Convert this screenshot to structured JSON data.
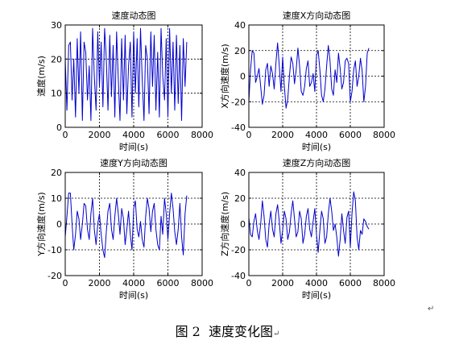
{
  "figure": {
    "caption_number": "图 2",
    "caption_text": "速度变化图",
    "return_mark": "↵"
  },
  "colors": {
    "line": "#0000cc",
    "axis": "#000000",
    "grid": "#000000"
  },
  "chart_data": [
    {
      "type": "line",
      "title": "速度动态图",
      "xlabel": "时间(s)",
      "ylabel": "速度(m/s)",
      "xlim": [
        0,
        8000
      ],
      "ylim": [
        0,
        30
      ],
      "xticks": [
        "0",
        "2000",
        "4000",
        "6000",
        "8000"
      ],
      "yticks": [
        "0",
        "10",
        "20",
        "30"
      ],
      "xtick_values": [
        0,
        2000,
        4000,
        6000,
        8000
      ],
      "ytick_values": [
        0,
        10,
        20,
        30
      ],
      "grid": true,
      "series": [
        {
          "x": [
            0,
            100,
            200,
            300,
            400,
            500,
            600,
            700,
            800,
            900,
            1000,
            1100,
            1200,
            1300,
            1400,
            1500,
            1600,
            1700,
            1800,
            1900,
            2000,
            2100,
            2200,
            2300,
            2400,
            2500,
            2600,
            2700,
            2800,
            2900,
            3000,
            3100,
            3200,
            3300,
            3400,
            3500,
            3600,
            3700,
            3800,
            3900,
            4000,
            4100,
            4200,
            4300,
            4400,
            4500,
            4600,
            4700,
            4800,
            4900,
            5000,
            5100,
            5200,
            5300,
            5400,
            5500,
            5600,
            5700,
            5800,
            5900,
            6000,
            6100,
            6200,
            6300,
            6400,
            6500,
            6600,
            6700,
            6800,
            6900,
            7000,
            7100
          ],
          "y": [
            20,
            5,
            24,
            25,
            8,
            20,
            3,
            26,
            10,
            28,
            2,
            25,
            22,
            8,
            18,
            2,
            29,
            15,
            5,
            28,
            12,
            25,
            6,
            29,
            20,
            5,
            27,
            9,
            24,
            3,
            28,
            14,
            2,
            26,
            8,
            27,
            4,
            18,
            25,
            3,
            28,
            10,
            26,
            6,
            29,
            14,
            2,
            24,
            20,
            4,
            28,
            12,
            27,
            5,
            22,
            3,
            29,
            15,
            8,
            26,
            3,
            29,
            10,
            25,
            5,
            27,
            7,
            24,
            2,
            26,
            12,
            25
          ]
        }
      ]
    },
    {
      "type": "line",
      "title": "速度X方向动态图",
      "xlabel": "时间(s)",
      "ylabel": "X方向速度(m/s)",
      "xlim": [
        0,
        8000
      ],
      "ylim": [
        -40,
        40
      ],
      "xticks": [
        "0",
        "2000",
        "4000",
        "6000",
        "8000"
      ],
      "yticks": [
        "-40",
        "-20",
        "0",
        "20",
        "40"
      ],
      "xtick_values": [
        0,
        2000,
        4000,
        6000,
        8000
      ],
      "ytick_values": [
        -40,
        -20,
        0,
        20,
        40
      ],
      "grid": true,
      "series": [
        {
          "x": [
            0,
            100,
            200,
            300,
            400,
            500,
            600,
            700,
            800,
            900,
            1000,
            1100,
            1200,
            1300,
            1400,
            1500,
            1600,
            1700,
            1800,
            1900,
            2000,
            2100,
            2200,
            2300,
            2400,
            2500,
            2600,
            2700,
            2800,
            2900,
            3000,
            3100,
            3200,
            3300,
            3400,
            3500,
            3600,
            3700,
            3800,
            3900,
            4000,
            4100,
            4200,
            4300,
            4400,
            4500,
            4600,
            4700,
            4800,
            4900,
            5000,
            5100,
            5200,
            5300,
            5400,
            5500,
            5600,
            5700,
            5800,
            5900,
            6000,
            6100,
            6200,
            6300,
            6400,
            6500,
            6600,
            6700,
            6800,
            6900,
            7000,
            7100
          ],
          "y": [
            -20,
            5,
            20,
            18,
            -5,
            0,
            6,
            -8,
            -22,
            -15,
            5,
            10,
            -8,
            8,
            2,
            -10,
            10,
            26,
            8,
            -12,
            15,
            -8,
            -25,
            -18,
            0,
            15,
            10,
            -6,
            5,
            22,
            8,
            -12,
            -15,
            -8,
            6,
            12,
            -8,
            -5,
            2,
            -12,
            16,
            20,
            5,
            -15,
            -20,
            -10,
            8,
            24,
            12,
            -10,
            -15,
            5,
            -5,
            18,
            6,
            -10,
            -5,
            12,
            14,
            10,
            -20,
            -12,
            5,
            12,
            -8,
            0,
            14,
            4,
            -20,
            -8,
            18,
            22
          ]
        }
      ]
    },
    {
      "type": "line",
      "title": "速度Y方向动态图",
      "xlabel": "时间(s)",
      "ylabel": "Y方向速度(m/s)",
      "xlim": [
        0,
        8000
      ],
      "ylim": [
        -20,
        20
      ],
      "xticks": [
        "0",
        "2000",
        "4000",
        "6000",
        "8000"
      ],
      "yticks": [
        "-20",
        "-10",
        "0",
        "10",
        "20"
      ],
      "xtick_values": [
        0,
        2000,
        4000,
        6000,
        8000
      ],
      "ytick_values": [
        -20,
        -10,
        0,
        10,
        20
      ],
      "grid": true,
      "series": [
        {
          "x": [
            0,
            100,
            200,
            300,
            400,
            500,
            600,
            700,
            800,
            900,
            1000,
            1100,
            1200,
            1300,
            1400,
            1500,
            1600,
            1700,
            1800,
            1900,
            2000,
            2100,
            2200,
            2300,
            2400,
            2500,
            2600,
            2700,
            2800,
            2900,
            3000,
            3100,
            3200,
            3300,
            3400,
            3500,
            3600,
            3700,
            3800,
            3900,
            4000,
            4100,
            4200,
            4300,
            4400,
            4500,
            4600,
            4700,
            4800,
            4900,
            5000,
            5100,
            5200,
            5300,
            5400,
            5500,
            5600,
            5700,
            5800,
            5900,
            6000,
            6100,
            6200,
            6300,
            6400,
            6500,
            6600,
            6700,
            6800,
            6900,
            7000,
            7100
          ],
          "y": [
            -5,
            3,
            12,
            12,
            0,
            -10,
            -4,
            5,
            2,
            -6,
            0,
            8,
            7,
            -2,
            -6,
            4,
            10,
            -2,
            -8,
            0,
            4,
            -4,
            -10,
            -13,
            -3,
            5,
            8,
            -2,
            -6,
            3,
            10,
            4,
            -4,
            6,
            2,
            -8,
            -2,
            5,
            -4,
            -10,
            6,
            9,
            -2,
            -5,
            1,
            -6,
            -9,
            3,
            10,
            6,
            -3,
            5,
            8,
            -2,
            -8,
            -10,
            3,
            -4,
            10,
            4,
            -6,
            4,
            12,
            6,
            -3,
            -8,
            -2,
            8,
            -5,
            -12,
            4,
            11
          ]
        }
      ]
    },
    {
      "type": "line",
      "title": "速度Z方向动态图",
      "xlabel": "时间(s)",
      "ylabel": "Z方向速度(m/s)",
      "xlim": [
        0,
        8000
      ],
      "ylim": [
        -40,
        40
      ],
      "xticks": [
        "0",
        "2000",
        "4000",
        "6000",
        "8000"
      ],
      "yticks": [
        "-40",
        "-20",
        "0",
        "20",
        "40"
      ],
      "xtick_values": [
        0,
        2000,
        4000,
        6000,
        8000
      ],
      "ytick_values": [
        -40,
        -20,
        0,
        20,
        40
      ],
      "grid": true,
      "series": [
        {
          "x": [
            0,
            100,
            200,
            300,
            400,
            500,
            600,
            700,
            800,
            900,
            1000,
            1100,
            1200,
            1300,
            1400,
            1500,
            1600,
            1700,
            1800,
            1900,
            2000,
            2100,
            2200,
            2300,
            2400,
            2500,
            2600,
            2700,
            2800,
            2900,
            3000,
            3100,
            3200,
            3300,
            3400,
            3500,
            3600,
            3700,
            3800,
            3900,
            4000,
            4100,
            4200,
            4300,
            4400,
            4500,
            4600,
            4700,
            4800,
            4900,
            5000,
            5100,
            5200,
            5300,
            5400,
            5500,
            5600,
            5700,
            5800,
            5900,
            6000,
            6100,
            6200,
            6300,
            6400,
            6500,
            6600,
            6700,
            6800,
            6900,
            7000,
            7100
          ],
          "y": [
            5,
            -8,
            -10,
            2,
            8,
            -5,
            -12,
            0,
            18,
            6,
            -12,
            -18,
            0,
            10,
            -4,
            -10,
            8,
            15,
            2,
            -15,
            -5,
            10,
            4,
            -12,
            -6,
            8,
            18,
            4,
            -10,
            -6,
            10,
            4,
            -15,
            -8,
            6,
            12,
            -4,
            -10,
            2,
            12,
            -8,
            -22,
            -5,
            10,
            4,
            -15,
            -10,
            8,
            20,
            10,
            -5,
            0,
            -10,
            -25,
            -12,
            8,
            -5,
            -15,
            5,
            10,
            -18,
            8,
            25,
            18,
            -10,
            -20,
            -5,
            -8,
            4,
            2,
            -2,
            -4
          ]
        }
      ]
    }
  ]
}
